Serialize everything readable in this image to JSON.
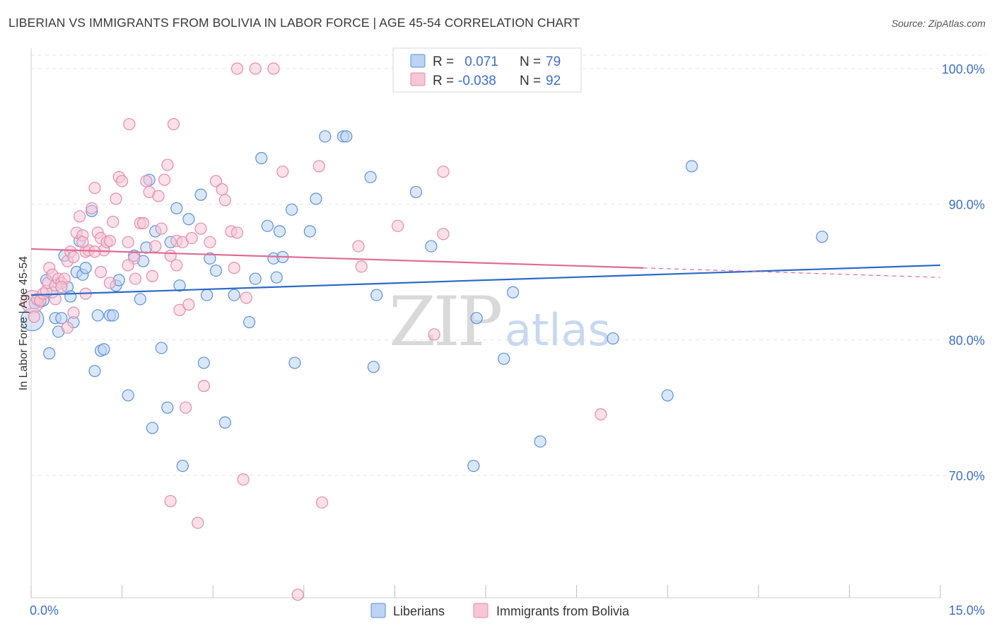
{
  "title": "LIBERIAN VS IMMIGRANTS FROM BOLIVIA IN LABOR FORCE | AGE 45-54 CORRELATION CHART",
  "source": "Source: ZipAtlas.com",
  "watermark": {
    "zip": "ZIP",
    "atlas": "atlas"
  },
  "legend": {
    "r_label": "R =",
    "n_label": "N =",
    "rows": [
      {
        "r": " 0.071",
        "n": "79"
      },
      {
        "r": "-0.038",
        "n": "92"
      }
    ]
  },
  "chart_data": {
    "type": "scatter",
    "title": "LIBERIAN VS IMMIGRANTS FROM BOLIVIA IN LABOR FORCE | AGE 45-54 CORRELATION CHART",
    "xlabel": "",
    "ylabel": "In Labor Force | Age 45-54",
    "xlim": [
      0,
      15
    ],
    "ylim": [
      60,
      100.5
    ],
    "x_tick_labels": [
      "0.0%",
      "15.0%"
    ],
    "y_ticks": [
      70,
      80,
      90,
      100
    ],
    "y_tick_labels": [
      "70.0%",
      "80.0%",
      "90.0%",
      "100.0%"
    ],
    "grid": true,
    "series": [
      {
        "name": "Liberians",
        "color": "#5b8fdc",
        "fill": "#bcd3f3",
        "line": "#2a6ac8",
        "trend": {
          "x": [
            0,
            15
          ],
          "y": [
            83.3,
            85.5
          ]
        },
        "points": [
          [
            0.02,
            81.5
          ],
          [
            0.1,
            82.9
          ],
          [
            0.15,
            82.8
          ],
          [
            0.2,
            82.9
          ],
          [
            0.25,
            84.4
          ],
          [
            0.3,
            79.0
          ],
          [
            0.35,
            83.5
          ],
          [
            0.4,
            81.6
          ],
          [
            0.45,
            80.6
          ],
          [
            0.5,
            81.6
          ],
          [
            0.55,
            86.2
          ],
          [
            0.6,
            83.9
          ],
          [
            0.65,
            83.2
          ],
          [
            0.7,
            81.3
          ],
          [
            0.75,
            85.0
          ],
          [
            0.8,
            87.3
          ],
          [
            0.85,
            84.8
          ],
          [
            0.9,
            85.3
          ],
          [
            1.0,
            89.5
          ],
          [
            1.05,
            77.7
          ],
          [
            1.1,
            81.8
          ],
          [
            1.15,
            79.2
          ],
          [
            1.2,
            79.3
          ],
          [
            1.3,
            81.8
          ],
          [
            1.35,
            81.8
          ],
          [
            1.4,
            84.0
          ],
          [
            1.45,
            84.4
          ],
          [
            1.6,
            75.9
          ],
          [
            1.7,
            86.2
          ],
          [
            1.8,
            83.0
          ],
          [
            1.85,
            85.8
          ],
          [
            1.9,
            86.8
          ],
          [
            1.95,
            91.8
          ],
          [
            2.0,
            73.5
          ],
          [
            2.05,
            88.0
          ],
          [
            2.15,
            79.4
          ],
          [
            2.25,
            75.0
          ],
          [
            2.3,
            87.2
          ],
          [
            2.4,
            89.7
          ],
          [
            2.45,
            84.0
          ],
          [
            2.5,
            70.7
          ],
          [
            2.6,
            88.9
          ],
          [
            2.8,
            90.7
          ],
          [
            2.85,
            78.3
          ],
          [
            2.9,
            83.3
          ],
          [
            2.95,
            86.0
          ],
          [
            3.05,
            85.1
          ],
          [
            3.2,
            73.9
          ],
          [
            3.35,
            83.3
          ],
          [
            3.6,
            81.3
          ],
          [
            3.7,
            84.5
          ],
          [
            3.8,
            93.4
          ],
          [
            3.9,
            88.4
          ],
          [
            4.0,
            86.0
          ],
          [
            4.05,
            84.6
          ],
          [
            4.1,
            88.0
          ],
          [
            4.15,
            86.1
          ],
          [
            4.3,
            89.6
          ],
          [
            4.35,
            78.3
          ],
          [
            4.6,
            88.0
          ],
          [
            4.7,
            90.4
          ],
          [
            4.85,
            95.0
          ],
          [
            5.15,
            95.0
          ],
          [
            5.2,
            95.0
          ],
          [
            5.6,
            92.0
          ],
          [
            5.65,
            78.0
          ],
          [
            5.7,
            83.3
          ],
          [
            6.35,
            90.9
          ],
          [
            6.6,
            86.9
          ],
          [
            7.3,
            70.7
          ],
          [
            7.35,
            81.6
          ],
          [
            7.8,
            78.6
          ],
          [
            7.95,
            83.5
          ],
          [
            8.4,
            72.5
          ],
          [
            9.6,
            80.1
          ],
          [
            10.5,
            75.9
          ],
          [
            10.9,
            92.8
          ],
          [
            13.05,
            87.6
          ],
          [
            0.06,
            82.7
          ]
        ]
      },
      {
        "name": "Immigrants from Bolivia",
        "color": "#e68aaa",
        "fill": "#f6c6d6",
        "line": "#e06b95",
        "trend": {
          "x": [
            0,
            10.1
          ],
          "y": [
            86.7,
            85.3
          ]
        },
        "trend_dashed": {
          "x": [
            10.1,
            15
          ],
          "y": [
            85.3,
            84.6
          ]
        },
        "points": [
          [
            0.02,
            82.8
          ],
          [
            0.05,
            81.7
          ],
          [
            0.1,
            83.0
          ],
          [
            0.15,
            82.9
          ],
          [
            0.2,
            83.4
          ],
          [
            0.25,
            83.6
          ],
          [
            0.28,
            84.2
          ],
          [
            0.3,
            85.3
          ],
          [
            0.35,
            84.8
          ],
          [
            0.4,
            84.0
          ],
          [
            0.45,
            84.5
          ],
          [
            0.5,
            84.2
          ],
          [
            0.55,
            84.5
          ],
          [
            0.6,
            85.8
          ],
          [
            0.65,
            86.5
          ],
          [
            0.7,
            86.1
          ],
          [
            0.75,
            87.9
          ],
          [
            0.8,
            89.1
          ],
          [
            0.85,
            87.7
          ],
          [
            0.9,
            86.5
          ],
          [
            0.95,
            86.6
          ],
          [
            1.0,
            89.7
          ],
          [
            1.05,
            91.2
          ],
          [
            1.1,
            87.9
          ],
          [
            1.15,
            87.5
          ],
          [
            1.2,
            86.6
          ],
          [
            1.25,
            87.2
          ],
          [
            1.3,
            87.3
          ],
          [
            1.35,
            88.7
          ],
          [
            1.4,
            90.4
          ],
          [
            1.45,
            92.0
          ],
          [
            1.5,
            91.7
          ],
          [
            1.6,
            87.2
          ],
          [
            1.62,
            95.9
          ],
          [
            1.7,
            86.0
          ],
          [
            1.72,
            84.5
          ],
          [
            1.8,
            88.6
          ],
          [
            1.85,
            88.6
          ],
          [
            1.9,
            91.7
          ],
          [
            1.95,
            90.9
          ],
          [
            2.0,
            84.7
          ],
          [
            2.05,
            86.9
          ],
          [
            2.1,
            90.6
          ],
          [
            2.15,
            88.2
          ],
          [
            2.2,
            91.8
          ],
          [
            2.25,
            92.9
          ],
          [
            2.3,
            86.2
          ],
          [
            2.35,
            95.9
          ],
          [
            2.4,
            87.3
          ],
          [
            2.45,
            82.2
          ],
          [
            2.5,
            87.2
          ],
          [
            2.55,
            75.0
          ],
          [
            2.6,
            82.6
          ],
          [
            2.65,
            87.5
          ],
          [
            2.75,
            66.5
          ],
          [
            2.8,
            88.2
          ],
          [
            2.85,
            76.6
          ],
          [
            2.95,
            87.2
          ],
          [
            3.05,
            91.7
          ],
          [
            3.15,
            91.1
          ],
          [
            3.2,
            90.3
          ],
          [
            3.3,
            88.0
          ],
          [
            3.35,
            85.3
          ],
          [
            3.4,
            87.9
          ],
          [
            3.5,
            69.7
          ],
          [
            3.55,
            83.1
          ],
          [
            3.4,
            100.0
          ],
          [
            3.7,
            100.0
          ],
          [
            4.0,
            100.0
          ],
          [
            4.15,
            92.4
          ],
          [
            4.4,
            61.2
          ],
          [
            4.75,
            92.8
          ],
          [
            4.8,
            68.0
          ],
          [
            5.4,
            86.9
          ],
          [
            5.45,
            85.4
          ],
          [
            6.05,
            88.4
          ],
          [
            6.65,
            80.4
          ],
          [
            6.8,
            92.4
          ],
          [
            6.8,
            87.8
          ],
          [
            9.4,
            74.5
          ],
          [
            2.3,
            68.1
          ],
          [
            2.4,
            85.5
          ],
          [
            0.6,
            80.9
          ],
          [
            1.05,
            86.5
          ],
          [
            0.85,
            87.2
          ],
          [
            1.15,
            85.0
          ],
          [
            0.4,
            83.0
          ],
          [
            0.5,
            83.9
          ],
          [
            1.3,
            84.2
          ],
          [
            0.7,
            82.0
          ],
          [
            0.9,
            83.4
          ],
          [
            1.6,
            85.5
          ]
        ]
      }
    ]
  }
}
